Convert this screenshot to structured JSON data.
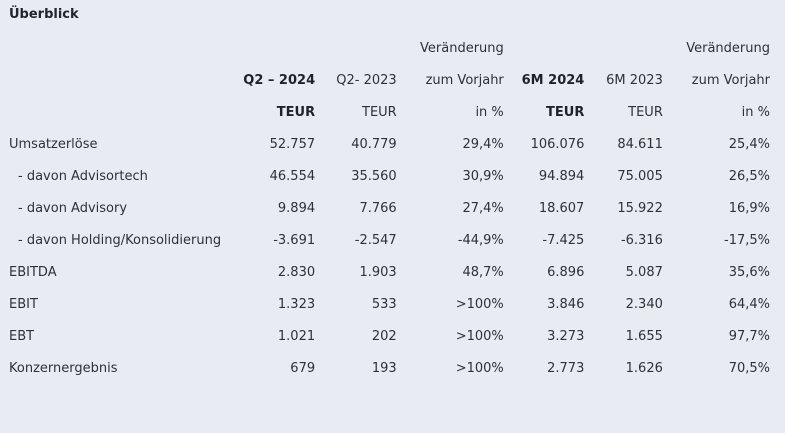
{
  "title": "Überblick",
  "header": {
    "row1": [
      "",
      "",
      "",
      "Veränderung",
      "",
      "",
      "Veränderung"
    ],
    "row2": [
      "",
      "Q2 – 2024",
      "Q2- 2023",
      "zum Vorjahr",
      "6M 2024",
      "6M 2023",
      "zum Vorjahr"
    ],
    "row3": [
      "",
      "TEUR",
      "TEUR",
      "in %",
      "TEUR",
      "TEUR",
      "in %"
    ]
  },
  "rows": [
    {
      "label": "Umsatzerlöse",
      "q2_2024": "52.757",
      "q2_2023": "40.779",
      "q_change": "29,4%",
      "m6_2024": "106.076",
      "m6_2023": "84.611",
      "m6_change": "25,4%"
    },
    {
      "label": "- davon Advisortech",
      "q2_2024": "46.554",
      "q2_2023": "35.560",
      "q_change": "30,9%",
      "m6_2024": "94.894",
      "m6_2023": "75.005",
      "m6_change": "26,5%"
    },
    {
      "label": "- davon Advisory",
      "q2_2024": "9.894",
      "q2_2023": "7.766",
      "q_change": "27,4%",
      "m6_2024": "18.607",
      "m6_2023": "15.922",
      "m6_change": "16,9%"
    },
    {
      "label": "- davon Holding/Konsolidierung",
      "q2_2024": "-3.691",
      "q2_2023": "-2.547",
      "q_change": "-44,9%",
      "m6_2024": "-7.425",
      "m6_2023": "-6.316",
      "m6_change": "-17,5%"
    },
    {
      "label": "EBITDA",
      "q2_2024": "2.830",
      "q2_2023": "1.903",
      "q_change": "48,7%",
      "m6_2024": "6.896",
      "m6_2023": "5.087",
      "m6_change": "35,6%"
    },
    {
      "label": "EBIT",
      "q2_2024": "1.323",
      "q2_2023": "533",
      "q_change": ">100%",
      "m6_2024": "3.846",
      "m6_2023": "2.340",
      "m6_change": "64,4%"
    },
    {
      "label": "EBT",
      "q2_2024": "1.021",
      "q2_2023": "202",
      "q_change": ">100%",
      "m6_2024": "3.273",
      "m6_2023": "1.655",
      "m6_change": "97,7%"
    },
    {
      "label": "Konzernergebnis",
      "q2_2024": "679",
      "q2_2023": "193",
      "q_change": ">100%",
      "m6_2024": "2.773",
      "m6_2023": "1.626",
      "m6_change": "70,5%"
    }
  ]
}
